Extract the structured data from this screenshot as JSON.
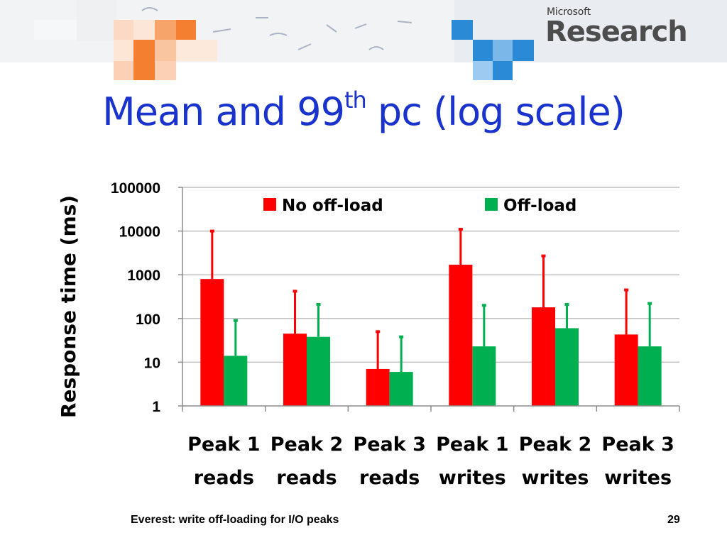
{
  "slide": {
    "title_main": "Mean and 99",
    "title_sup": "th",
    "title_tail": " pc (log scale)",
    "footer": "Everest: write off-loading for I/O peaks",
    "page_number": "29"
  },
  "logo": {
    "small": "Microsoft",
    "big": "Research"
  },
  "colors": {
    "title": "#1a33cc",
    "no_offload": "#ff0000",
    "offload": "#00b050",
    "gridline": "#bfbfbf",
    "axis": "#8c8c8c"
  },
  "chart_data": {
    "type": "bar",
    "title": "",
    "xlabel": "",
    "ylabel": "Response time (ms)",
    "yscale": "log",
    "ylim": [
      1,
      100000
    ],
    "yticks": [
      "1",
      "10",
      "100",
      "1000",
      "10000",
      "100000"
    ],
    "grid": true,
    "legend_position": "top",
    "categories": [
      [
        "Peak 1",
        "reads"
      ],
      [
        "Peak 2",
        "reads"
      ],
      [
        "Peak 3",
        "reads"
      ],
      [
        "Peak 1",
        "writes"
      ],
      [
        "Peak 2",
        "writes"
      ],
      [
        "Peak 3",
        "writes"
      ]
    ],
    "series": [
      {
        "name": "No off-load",
        "color": "#ff0000",
        "values": [
          800,
          45,
          7,
          1700,
          180,
          43
        ],
        "error_upper": [
          10000,
          420,
          50,
          11000,
          2700,
          450
        ]
      },
      {
        "name": "Off-load",
        "color": "#00b050",
        "values": [
          14,
          38,
          6,
          23,
          60,
          23
        ],
        "error_upper": [
          90,
          210,
          38,
          200,
          210,
          220
        ]
      }
    ]
  }
}
